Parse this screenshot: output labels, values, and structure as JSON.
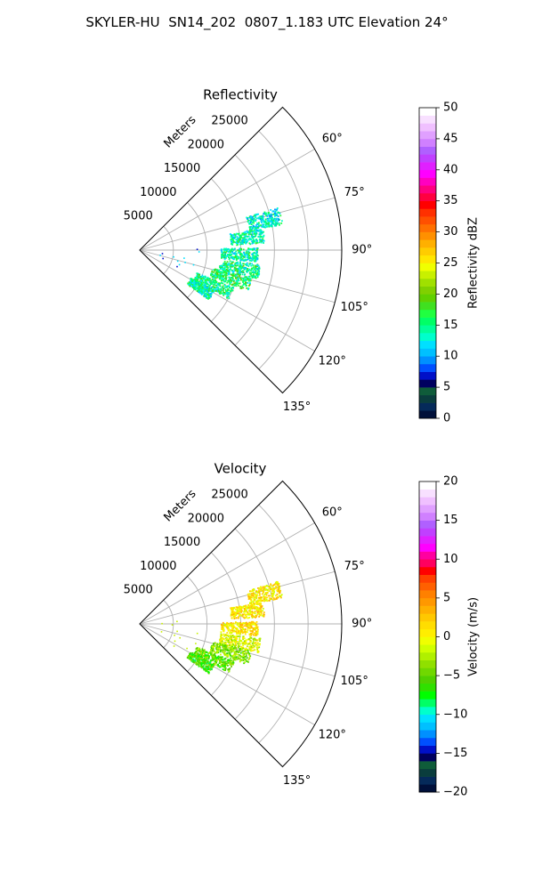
{
  "figure": {
    "title": "SKYLER-HU  SN14_202  0807_1.183 UTC Elevation 24°"
  },
  "chart_data": [
    {
      "type": "polar_sector",
      "title": "Reflectivity",
      "radial_label": "Meters",
      "radial_ticks": [
        5000,
        10000,
        15000,
        20000,
        25000
      ],
      "radial_tick_labels": [
        "5000",
        "10000",
        "15000",
        "20000",
        "25000"
      ],
      "radial_max": 30000,
      "angle_range_deg": [
        45,
        135
      ],
      "angle_ticks": [
        60,
        75,
        90,
        105,
        120,
        135
      ],
      "angle_tick_labels": [
        "60°",
        "75°",
        "90°",
        "105°",
        "120°",
        "135°"
      ],
      "grid": true,
      "colorbar": {
        "label": "Reflectivity dBZ",
        "range": [
          0,
          50
        ],
        "ticks": [
          0,
          5,
          10,
          15,
          20,
          25,
          30,
          35,
          40,
          45,
          50
        ],
        "tick_labels": [
          "0",
          "5",
          "10",
          "15",
          "20",
          "25",
          "30",
          "35",
          "40",
          "45",
          "50"
        ],
        "colormap": "NWSRef"
      },
      "echo_field": {
        "description_units": "azimuth_deg / range_m / value",
        "clusters": [
          {
            "az": 76,
            "r_min": 16500,
            "r_max": 21500,
            "value": 13
          },
          {
            "az": 83,
            "r_min": 13500,
            "r_max": 18500,
            "value": 14
          },
          {
            "az": 92,
            "r_min": 12000,
            "r_max": 17500,
            "value": 14
          },
          {
            "az": 100,
            "r_min": 12000,
            "r_max": 18000,
            "value": 15
          },
          {
            "az": 107,
            "r_min": 11000,
            "r_max": 17000,
            "value": 16
          },
          {
            "az": 115,
            "r_min": 9000,
            "r_max": 15000,
            "value": 15
          },
          {
            "az": 122,
            "r_min": 8500,
            "r_max": 12500,
            "value": 14
          }
        ]
      }
    },
    {
      "type": "polar_sector",
      "title": "Velocity",
      "radial_label": "Meters",
      "radial_ticks": [
        5000,
        10000,
        15000,
        20000,
        25000
      ],
      "radial_tick_labels": [
        "5000",
        "10000",
        "15000",
        "20000",
        "25000"
      ],
      "radial_max": 30000,
      "angle_range_deg": [
        45,
        135
      ],
      "angle_ticks": [
        60,
        75,
        90,
        105,
        120,
        135
      ],
      "angle_tick_labels": [
        "60°",
        "75°",
        "90°",
        "105°",
        "120°",
        "135°"
      ],
      "grid": true,
      "colorbar": {
        "label": "Velocity (m/s)",
        "range": [
          -20,
          20
        ],
        "ticks": [
          -20,
          -15,
          -10,
          -5,
          0,
          5,
          10,
          15,
          20
        ],
        "tick_labels": [
          "−20",
          "−15",
          "−10",
          "−5",
          "0",
          "5",
          "10",
          "15",
          "20"
        ],
        "colormap": "NWSVel"
      },
      "echo_field": {
        "description_units": "azimuth_deg / range_m / value",
        "clusters": [
          {
            "az": 76,
            "r_min": 16500,
            "r_max": 21500,
            "value": 1
          },
          {
            "az": 83,
            "r_min": 13500,
            "r_max": 18500,
            "value": 1
          },
          {
            "az": 92,
            "r_min": 12000,
            "r_max": 17500,
            "value": 1
          },
          {
            "az": 100,
            "r_min": 12000,
            "r_max": 18000,
            "value": -1
          },
          {
            "az": 107,
            "r_min": 11000,
            "r_max": 17000,
            "value": -4
          },
          {
            "az": 115,
            "r_min": 9000,
            "r_max": 15000,
            "value": -5
          },
          {
            "az": 122,
            "r_min": 8500,
            "r_max": 12500,
            "value": -6
          }
        ]
      }
    }
  ]
}
